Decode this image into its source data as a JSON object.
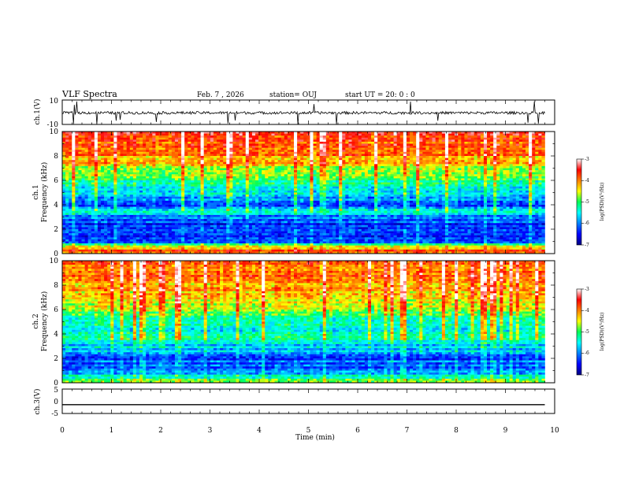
{
  "header": {
    "title": "VLF Spectra",
    "date": "Feb. 7 , 2026",
    "station": "station= OUJ",
    "start": "start  UT =   20: 0  : 0"
  },
  "panels": {
    "ch1_waveform_label": "ch.1(V)",
    "ch1_spec_label": "ch.1",
    "ch1_spec_sublabel": "Frequency  (kHz)",
    "ch2_spec_label": "ch.2",
    "ch2_spec_sublabel": "Frequency  (kHz)",
    "ch3_waveform_label": "ch.3(V)"
  },
  "colorbar": {
    "label": "log(PSD)(V²/Hz)",
    "ticks": [
      "-3",
      "-4",
      "-5",
      "-6",
      "-7"
    ]
  },
  "chart_data": [
    {
      "type": "line",
      "name": "ch.1 waveform",
      "ylabel": "ch.1(V)",
      "ylim": [
        -10,
        10
      ],
      "yticks": [
        "10",
        "-10"
      ],
      "xlim": [
        0,
        10
      ],
      "baseline": -0.5,
      "trace_color": "#000000"
    },
    {
      "type": "heatmap",
      "name": "ch.1 spectrogram",
      "ylabel": "Frequency  (kHz)",
      "ylim": [
        0,
        10
      ],
      "yticks": [
        "0",
        "2",
        "4",
        "6",
        "8",
        "10"
      ],
      "xlim": [
        0,
        9.8
      ],
      "zlim": [
        -7,
        -3
      ],
      "zlabel": "log(PSD)(V²/Hz)",
      "band_profile": [
        {
          "f": 0.3,
          "z": -3.8
        },
        {
          "f": 0.6,
          "z": -4.6
        },
        {
          "f": 1.0,
          "z": -6.4
        },
        {
          "f": 1.5,
          "z": -6.3
        },
        {
          "f": 2.0,
          "z": -6.4
        },
        {
          "f": 2.5,
          "z": -6.3
        },
        {
          "f": 3.0,
          "z": -6.1
        },
        {
          "f": 3.4,
          "z": -5.2
        },
        {
          "f": 3.9,
          "z": -6.3
        },
        {
          "f": 4.5,
          "z": -5.8
        },
        {
          "f": 5.2,
          "z": -5.5
        },
        {
          "f": 6.0,
          "z": -5.0
        },
        {
          "f": 7.0,
          "z": -4.5
        },
        {
          "f": 8.0,
          "z": -4.0
        },
        {
          "f": 9.0,
          "z": -3.8
        },
        {
          "f": 10.0,
          "z": -3.7
        }
      ]
    },
    {
      "type": "heatmap",
      "name": "ch.2 spectrogram",
      "ylabel": "Frequency  (kHz)",
      "ylim": [
        0,
        10
      ],
      "yticks": [
        "0",
        "2",
        "4",
        "6",
        "8",
        "10"
      ],
      "xlim": [
        0,
        9.8
      ],
      "zlim": [
        -7,
        -3
      ],
      "zlabel": "log(PSD)(V²/Hz)",
      "band_profile": [
        {
          "f": 0.3,
          "z": -5.0
        },
        {
          "f": 0.8,
          "z": -5.9
        },
        {
          "f": 1.3,
          "z": -6.1
        },
        {
          "f": 2.0,
          "z": -6.2
        },
        {
          "f": 2.6,
          "z": -5.8
        },
        {
          "f": 3.1,
          "z": -5.6
        },
        {
          "f": 3.6,
          "z": -5.0
        },
        {
          "f": 4.3,
          "z": -5.5
        },
        {
          "f": 5.0,
          "z": -5.2
        },
        {
          "f": 6.0,
          "z": -4.8
        },
        {
          "f": 7.0,
          "z": -4.4
        },
        {
          "f": 8.0,
          "z": -4.1
        },
        {
          "f": 9.0,
          "z": -3.9
        },
        {
          "f": 10.0,
          "z": -3.8
        }
      ]
    },
    {
      "type": "line",
      "name": "ch.3 waveform",
      "ylabel": "ch.3(V)",
      "ylim": [
        -5,
        5
      ],
      "yticks": [
        "5",
        "0",
        "-5"
      ],
      "xlim": [
        0,
        10
      ],
      "baseline": -1.4,
      "trace_color": "#000000"
    },
    {
      "type": "axis",
      "name": "time axis",
      "xlabel": "Time  (min)",
      "xlim": [
        0,
        10
      ],
      "xticks": [
        "0",
        "1",
        "2",
        "3",
        "4",
        "5",
        "6",
        "7",
        "8",
        "9",
        "10"
      ]
    }
  ]
}
